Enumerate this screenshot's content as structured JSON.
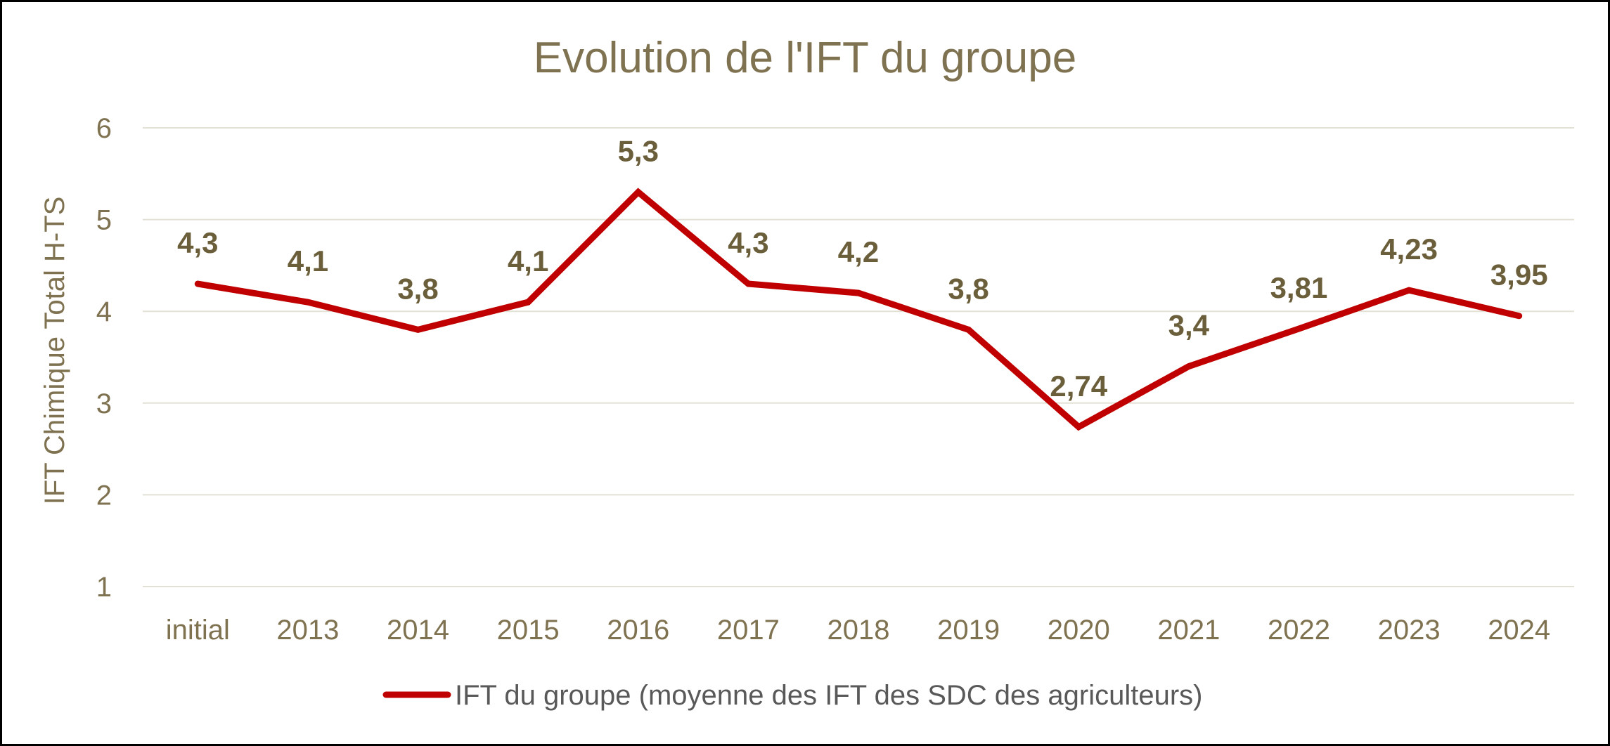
{
  "chart_data": {
    "type": "line",
    "title": "Evolution de l'IFT du groupe",
    "xlabel": "",
    "ylabel": "IFT Chimique Total H-TS",
    "categories": [
      "initial",
      "2013",
      "2014",
      "2015",
      "2016",
      "2017",
      "2018",
      "2019",
      "2020",
      "2021",
      "2022",
      "2023",
      "2024"
    ],
    "series": [
      {
        "name": "IFT du groupe (moyenne des IFT des SDC des agriculteurs)",
        "values": [
          4.3,
          4.1,
          3.8,
          4.1,
          5.3,
          4.3,
          4.2,
          3.8,
          2.74,
          3.4,
          3.81,
          4.23,
          3.95
        ],
        "labels": [
          "4,3",
          "4,1",
          "3,8",
          "4,1",
          "5,3",
          "4,3",
          "4,2",
          "3,8",
          "2,74",
          "3,4",
          "3,81",
          "4,23",
          "3,95"
        ],
        "color": "#C00000"
      }
    ],
    "ylim": [
      1,
      6
    ],
    "yticks": [
      "1",
      "2",
      "3",
      "4",
      "5",
      "6"
    ],
    "grid": true,
    "legend_position": "bottom"
  },
  "colors": {
    "text": "#7F7250",
    "data_label": "#6B5E3A",
    "gridline": "#E3E1D6",
    "line": "#C00000"
  }
}
